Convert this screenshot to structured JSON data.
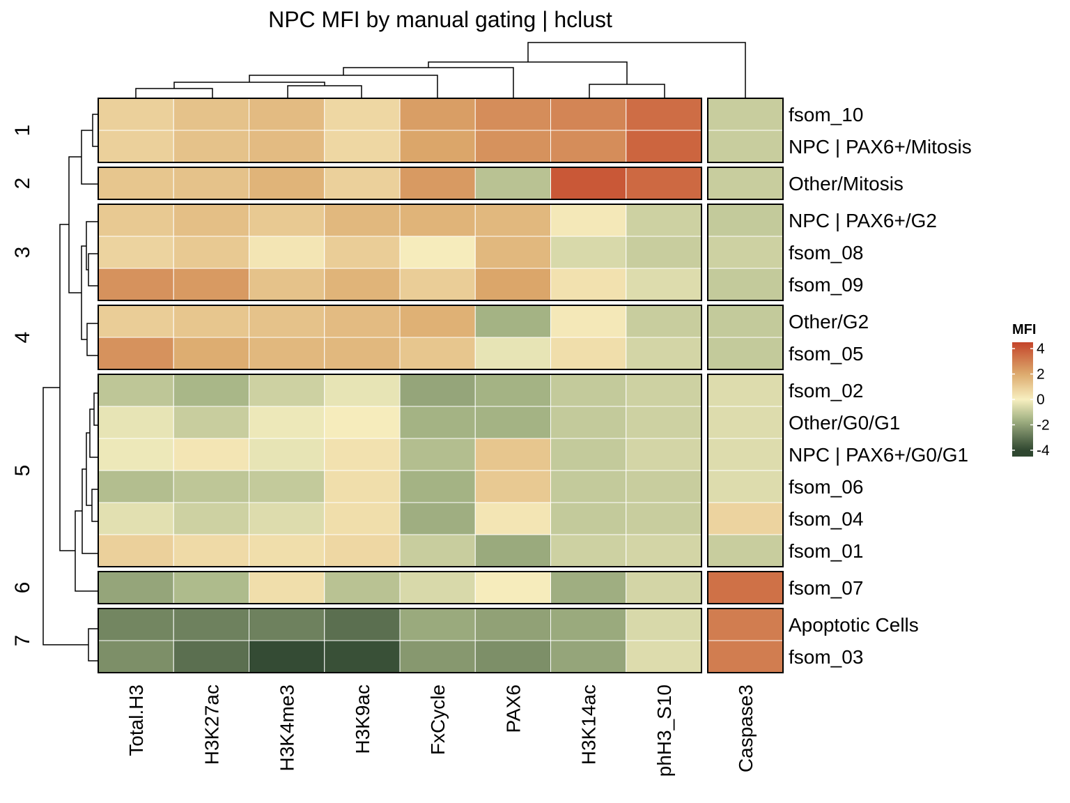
{
  "chart_data": {
    "type": "heatmap",
    "title": "NPC MFI by manual gating | hclust",
    "columns": [
      "Total.H3",
      "H3K27ac",
      "H3K4me3",
      "H3K9ac",
      "FxCycle",
      "PAX6",
      "H3K14ac",
      "phH3_S10"
    ],
    "side_column": "Caspase3",
    "row_groups": [
      {
        "cluster": "1",
        "rows": [
          "fsom_10",
          "NPC | PAX6+/Mitosis"
        ]
      },
      {
        "cluster": "2",
        "rows": [
          "Other/Mitosis"
        ]
      },
      {
        "cluster": "3",
        "rows": [
          "NPC | PAX6+/G2",
          "fsom_08",
          "fsom_09"
        ]
      },
      {
        "cluster": "4",
        "rows": [
          "Other/G2",
          "fsom_05"
        ]
      },
      {
        "cluster": "5",
        "rows": [
          "fsom_02",
          "Other/G0/G1",
          "NPC | PAX6+/G0/G1",
          "fsom_06",
          "fsom_04",
          "fsom_01"
        ]
      },
      {
        "cluster": "6",
        "rows": [
          "fsom_07"
        ]
      },
      {
        "cluster": "7",
        "rows": [
          "Apoptotic Cells",
          "fsom_03"
        ]
      }
    ],
    "values": [
      [
        0.9,
        1.3,
        1.5,
        0.7,
        2.3,
        2.7,
        2.9,
        3.5
      ],
      [
        0.9,
        1.3,
        1.5,
        0.7,
        2.1,
        2.6,
        2.7,
        3.7
      ],
      [
        1.2,
        1.3,
        1.7,
        0.9,
        2.4,
        -1.2,
        4.0,
        3.6
      ],
      [
        1.1,
        1.4,
        1.1,
        1.6,
        1.7,
        1.6,
        0.2,
        -0.8
      ],
      [
        0.8,
        1.1,
        0.3,
        1.0,
        0.1,
        1.6,
        -0.6,
        -0.9
      ],
      [
        2.6,
        2.4,
        1.3,
        1.7,
        1.0,
        2.1,
        0.4,
        -0.5
      ],
      [
        1.0,
        1.2,
        1.3,
        1.5,
        1.8,
        -1.6,
        0.2,
        -0.9
      ],
      [
        2.6,
        1.9,
        1.6,
        1.6,
        1.2,
        -0.3,
        0.5,
        -0.7
      ],
      [
        -1.1,
        -1.5,
        -0.8,
        -0.3,
        -1.9,
        -1.6,
        -1.0,
        -0.8
      ],
      [
        -0.3,
        -0.9,
        -0.2,
        0.1,
        -1.6,
        -1.6,
        -1.0,
        -0.8
      ],
      [
        -0.2,
        0.3,
        -0.3,
        0.4,
        -1.3,
        1.2,
        -1.0,
        -0.7
      ],
      [
        -1.3,
        -1.1,
        -1.0,
        0.5,
        -1.6,
        1.1,
        -1.0,
        -0.9
      ],
      [
        -0.4,
        -0.8,
        -0.5,
        0.5,
        -1.7,
        0.3,
        -1.0,
        -0.9
      ],
      [
        0.9,
        0.6,
        0.5,
        0.7,
        -0.9,
        -1.8,
        -0.8,
        -0.7
      ],
      [
        -1.9,
        -1.4,
        0.5,
        -1.2,
        -0.6,
        0.1,
        -1.7,
        -0.7
      ],
      [
        -2.6,
        -2.7,
        -2.7,
        -3.1,
        -1.8,
        -2.0,
        -1.8,
        -0.6
      ],
      [
        -2.4,
        -3.1,
        -3.9,
        -3.8,
        -2.2,
        -2.4,
        -1.9,
        -0.5
      ]
    ],
    "side_values": [
      -0.9,
      -0.9,
      -0.9,
      -1.0,
      -0.8,
      -1.0,
      -1.0,
      -1.0,
      -0.5,
      -0.5,
      -0.5,
      -0.5,
      0.8,
      -0.9,
      3.4,
      3.1,
      3.1
    ],
    "legend": {
      "title": "MFI",
      "ticks": [
        "4",
        "2",
        "0",
        "-2",
        "-4"
      ],
      "range": [
        -4.5,
        4.5
      ],
      "position": "right"
    },
    "colors": {
      "low": "#2f4730",
      "mid_low": "#a9b788",
      "zero": "#f7efc0",
      "mid_high": "#dcaa6d",
      "high": "#c4442a"
    },
    "grid": false
  }
}
